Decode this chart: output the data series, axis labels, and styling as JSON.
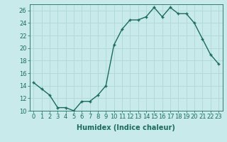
{
  "x": [
    0,
    1,
    2,
    3,
    4,
    5,
    6,
    7,
    8,
    9,
    10,
    11,
    12,
    13,
    14,
    15,
    16,
    17,
    18,
    19,
    20,
    21,
    22,
    23
  ],
  "y": [
    14.5,
    13.5,
    12.5,
    10.5,
    10.5,
    10.0,
    11.5,
    11.5,
    12.5,
    14.0,
    20.5,
    23.0,
    24.5,
    24.5,
    25.0,
    26.5,
    25.0,
    26.5,
    25.5,
    25.5,
    24.0,
    21.5,
    19.0,
    17.5
  ],
  "xlabel": "Humidex (Indice chaleur)",
  "ylabel": "",
  "title": "",
  "line_color": "#1a6b5e",
  "marker": "+",
  "bg_color": "#c8eaea",
  "grid_color": "#b0d8d8",
  "tick_color": "#1a6b5e",
  "label_color": "#1a6b5e",
  "xlim": [
    -0.5,
    23.5
  ],
  "ylim": [
    10,
    27
  ],
  "yticks": [
    10,
    12,
    14,
    16,
    18,
    20,
    22,
    24,
    26
  ],
  "xticks": [
    0,
    1,
    2,
    3,
    4,
    5,
    6,
    7,
    8,
    9,
    10,
    11,
    12,
    13,
    14,
    15,
    16,
    17,
    18,
    19,
    20,
    21,
    22,
    23
  ],
  "xtick_labels": [
    "0",
    "1",
    "2",
    "3",
    "4",
    "5",
    "6",
    "7",
    "8",
    "9",
    "10",
    "11",
    "12",
    "13",
    "14",
    "15",
    "16",
    "17",
    "18",
    "19",
    "20",
    "21",
    "22",
    "23"
  ],
  "xlabel_fontsize": 7,
  "tick_fontsize": 6,
  "line_width": 1.0,
  "marker_size": 3
}
